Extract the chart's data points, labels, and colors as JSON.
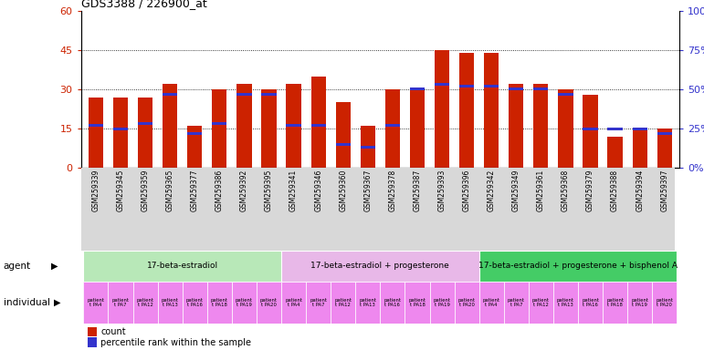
{
  "title": "GDS3388 / 226900_at",
  "gsm_ids": [
    "GSM259339",
    "GSM259345",
    "GSM259359",
    "GSM259365",
    "GSM259377",
    "GSM259386",
    "GSM259392",
    "GSM259395",
    "GSM259341",
    "GSM259346",
    "GSM259360",
    "GSM259367",
    "GSM259378",
    "GSM259387",
    "GSM259393",
    "GSM259396",
    "GSM259342",
    "GSM259349",
    "GSM259361",
    "GSM259368",
    "GSM259379",
    "GSM259388",
    "GSM259394",
    "GSM259397"
  ],
  "counts": [
    27,
    27,
    27,
    32,
    16,
    30,
    32,
    30,
    32,
    35,
    25,
    16,
    30,
    30,
    45,
    44,
    44,
    32,
    32,
    30,
    28,
    12,
    15,
    15
  ],
  "percentile_pcts": [
    27,
    25,
    28,
    47,
    22,
    28,
    47,
    47,
    27,
    27,
    15,
    13,
    27,
    50,
    53,
    52,
    52,
    50,
    50,
    47,
    25,
    25,
    25,
    22
  ],
  "bar_color": "#cc2200",
  "blue_color": "#3333cc",
  "groups": [
    {
      "label": "17-beta-estradiol",
      "start": 0,
      "end": 7,
      "color": "#b8e8b8"
    },
    {
      "label": "17-beta-estradiol + progesterone",
      "start": 8,
      "end": 15,
      "color": "#e8b8e8"
    },
    {
      "label": "17-beta-estradiol + progesterone + bisphenol A",
      "start": 16,
      "end": 23,
      "color": "#44cc66"
    }
  ],
  "ylim_left": [
    0,
    60
  ],
  "ylim_right": [
    0,
    100
  ],
  "yticks_left": [
    0,
    15,
    30,
    45,
    60
  ],
  "yticks_right": [
    0,
    25,
    50,
    75,
    100
  ],
  "bar_color_left": "#cc2200",
  "bar_color_right": "#3333cc",
  "bar_width": 0.6,
  "indiv_color": "#ee88ee",
  "indiv_labels": [
    "patient\nt PA4",
    "patient\nt PA7",
    "patient\nt PA12",
    "patient\nt PA13",
    "patient\nt PA16",
    "patient\nt PA18",
    "patient\nt PA19",
    "patient\nt PA20",
    "patient\nt PA4",
    "patient\nt PA7",
    "patient\nt PA12",
    "patient\nt PA13",
    "patient\nt PA16",
    "patient\nt PA18",
    "patient\nt PA19",
    "patient\nt PA20",
    "patient\nt PA4",
    "patient\nt PA7",
    "patient\nt PA12",
    "patient\nt PA13",
    "patient\nt PA16",
    "patient\nt PA18",
    "patient\nt PA19",
    "patient\nt PA20"
  ]
}
